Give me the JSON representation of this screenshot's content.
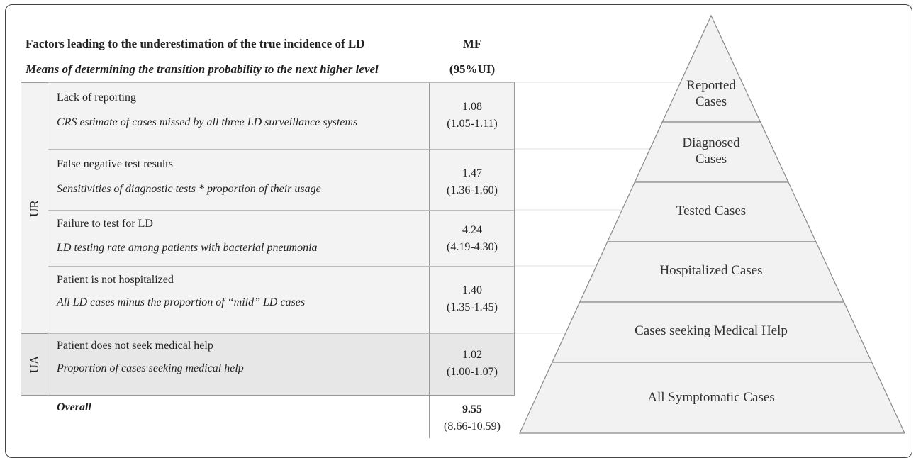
{
  "header": {
    "factors_title": "Factors leading to the underestimation of the true incidence of LD",
    "means_title": "Means of determining the transition probability to the next higher level",
    "mf_title": "MF",
    "ui_title": "(95%UI)"
  },
  "groups": {
    "ur": "UR",
    "ua": "UA"
  },
  "rows": [
    {
      "title": "Lack of reporting",
      "desc": "CRS estimate of cases missed by all three LD surveillance systems",
      "mf": "1.08",
      "ui": "(1.05-1.11)"
    },
    {
      "title": "False negative test results",
      "desc": "Sensitivities of diagnostic tests * proportion of their usage",
      "mf": "1.47",
      "ui": "(1.36-1.60)"
    },
    {
      "title": "Failure to test for LD",
      "desc": "LD testing rate among patients with bacterial pneumonia",
      "mf": "4.24",
      "ui": "(4.19-4.30)"
    },
    {
      "title": "Patient is not hospitalized",
      "desc": "All LD cases minus the proportion of “mild” LD cases",
      "mf": "1.40",
      "ui": "(1.35-1.45)"
    },
    {
      "title": "Patient does not seek medical help",
      "desc": "Proportion of cases seeking medical help",
      "mf": "1.02",
      "ui": "(1.00-1.07)"
    }
  ],
  "overall": {
    "label": "Overall",
    "mf": "9.55",
    "ui": "(8.66-10.59)"
  },
  "pyramid": {
    "levels": [
      {
        "line1": "Reported",
        "line2": "Cases"
      },
      {
        "line1": "Diagnosed",
        "line2": "Cases"
      },
      {
        "line1": "Tested Cases",
        "line2": ""
      },
      {
        "line1": "Hospitalized Cases",
        "line2": ""
      },
      {
        "line1": "Cases seeking Medical Help",
        "line2": ""
      },
      {
        "line1": "All Symptomatic Cases",
        "line2": ""
      }
    ],
    "colors": {
      "fill": "#f2f2f2",
      "stroke": "#8a8a8a"
    }
  }
}
